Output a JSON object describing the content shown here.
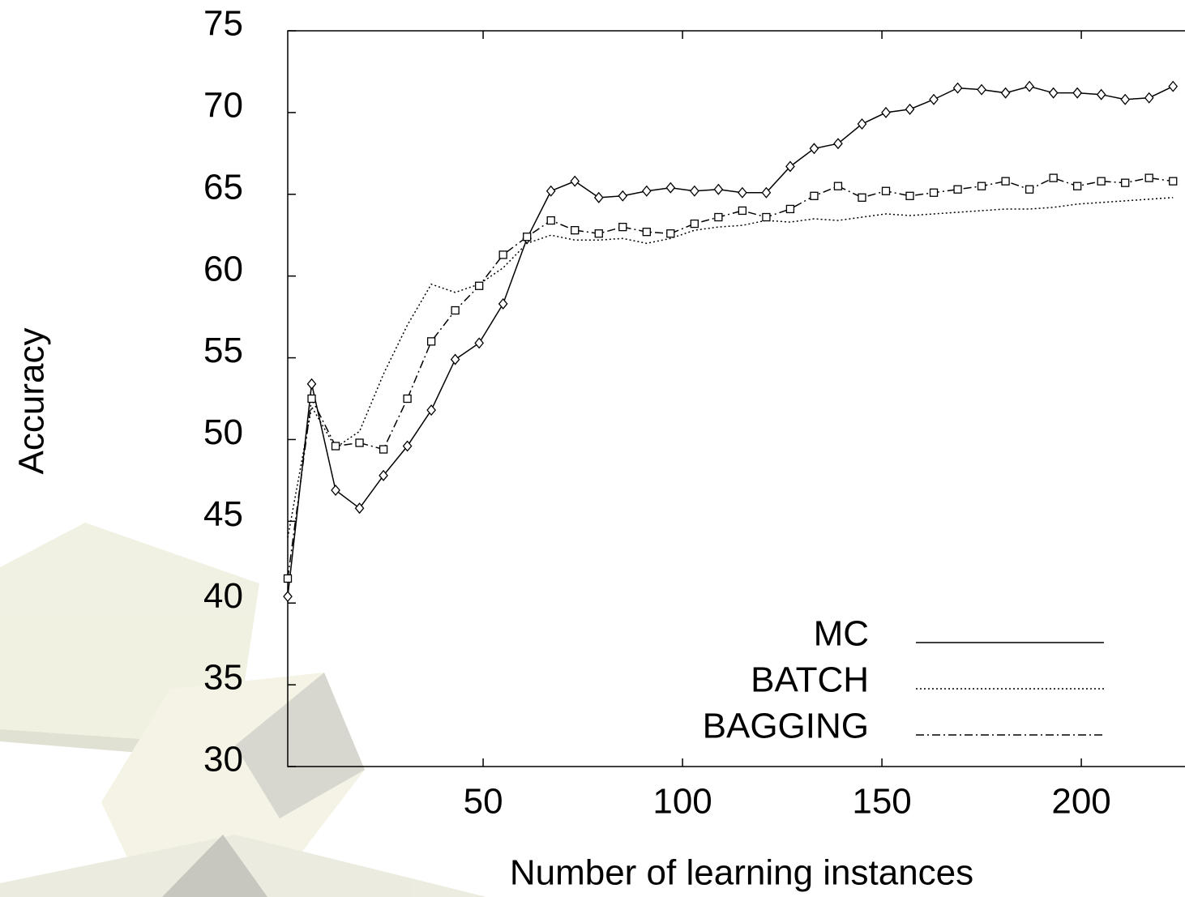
{
  "chart_data": {
    "type": "line",
    "x_label": "Number of learning instances",
    "y_label": "Accuracy",
    "x": [
      1,
      7,
      13,
      19,
      25,
      31,
      37,
      43,
      49,
      55,
      61,
      67,
      73,
      79,
      85,
      91,
      97,
      103,
      109,
      115,
      121,
      127,
      133,
      139,
      145,
      151,
      157,
      163,
      169,
      175,
      181,
      187,
      193,
      199,
      205,
      211,
      217,
      223
    ],
    "series": [
      {
        "name": "MC",
        "color": "#000000",
        "line_style": "solid",
        "marker": "diamond",
        "values": [
          40.4,
          53.4,
          46.9,
          45.8,
          47.8,
          49.6,
          51.8,
          54.9,
          55.9,
          58.3,
          62.3,
          65.2,
          65.8,
          64.8,
          64.9,
          65.2,
          65.4,
          65.2,
          65.3,
          65.1,
          65.1,
          66.7,
          67.8,
          68.1,
          69.3,
          70.0,
          70.2,
          70.8,
          71.5,
          71.4,
          71.2,
          71.6,
          71.2,
          71.2,
          71.1,
          70.8,
          70.9,
          71.6
        ]
      },
      {
        "name": "BATCH",
        "color": "#000000",
        "line_style": "dotted",
        "marker": "none",
        "values": [
          44.0,
          52.0,
          49.5,
          50.5,
          54.0,
          57.0,
          59.5,
          59.0,
          59.5,
          60.5,
          62.0,
          62.5,
          62.2,
          62.2,
          62.3,
          62.0,
          62.3,
          62.8,
          63.0,
          63.1,
          63.4,
          63.3,
          63.5,
          63.4,
          63.6,
          63.8,
          63.7,
          63.8,
          63.9,
          64.0,
          64.1,
          64.1,
          64.2,
          64.4,
          64.5,
          64.6,
          64.7,
          64.8
        ]
      },
      {
        "name": "BAGGING",
        "color": "#000000",
        "line_style": "dashdot",
        "marker": "square",
        "values": [
          41.5,
          52.5,
          49.6,
          49.8,
          49.4,
          52.5,
          56.0,
          57.9,
          59.4,
          61.3,
          62.4,
          63.4,
          62.8,
          62.6,
          63.0,
          62.7,
          62.6,
          63.2,
          63.6,
          64.0,
          63.6,
          64.1,
          64.9,
          65.5,
          64.8,
          65.2,
          64.9,
          65.1,
          65.3,
          65.5,
          65.8,
          65.3,
          66.0,
          65.5,
          65.8,
          65.7,
          66.0,
          65.8
        ]
      }
    ],
    "xlim": [
      1,
      226
    ],
    "ylim": [
      30,
      75
    ],
    "xticks": [
      50,
      100,
      150,
      200
    ],
    "yticks": [
      30,
      35,
      40,
      45,
      50,
      55,
      60,
      65,
      70,
      75
    ],
    "legend": "lower right"
  }
}
